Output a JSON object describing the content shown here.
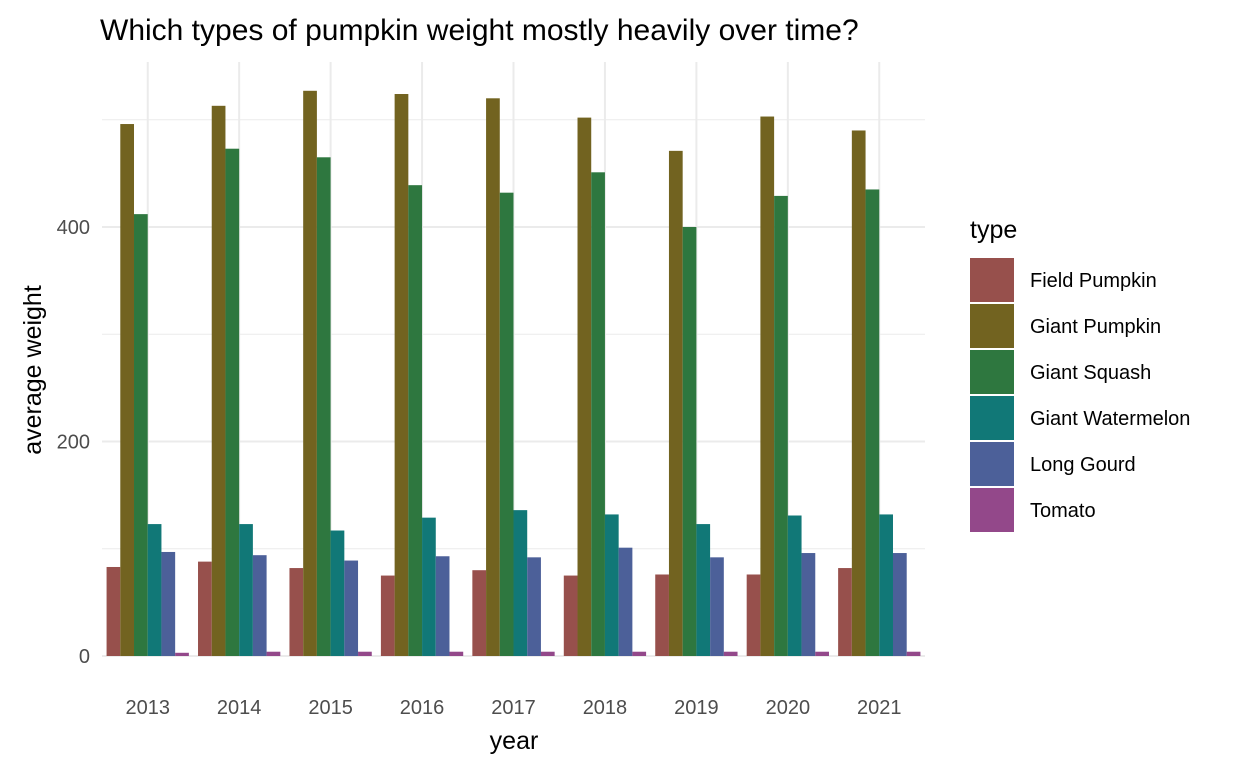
{
  "chart_data": {
    "type": "bar",
    "title": "Which types of pumpkin weight mostly heavily over time?",
    "xlabel": "year",
    "ylabel": "average weight",
    "categories": [
      "2013",
      "2014",
      "2015",
      "2016",
      "2017",
      "2018",
      "2019",
      "2020",
      "2021"
    ],
    "ylim": [
      0,
      540
    ],
    "yticks": [
      0,
      200,
      400
    ],
    "grid": true,
    "legend_title": "type",
    "legend_position": "right",
    "series": [
      {
        "name": "Field Pumpkin",
        "color": "#97504C",
        "values": [
          83,
          88,
          82,
          75,
          80,
          75,
          76,
          76,
          82
        ]
      },
      {
        "name": "Giant Pumpkin",
        "color": "#726320",
        "values": [
          496,
          513,
          527,
          524,
          520,
          502,
          471,
          503,
          490
        ]
      },
      {
        "name": "Giant Squash",
        "color": "#2E773F",
        "values": [
          412,
          473,
          465,
          439,
          432,
          451,
          400,
          429,
          435
        ]
      },
      {
        "name": "Giant Watermelon",
        "color": "#117877",
        "values": [
          123,
          123,
          117,
          129,
          136,
          132,
          123,
          131,
          132
        ]
      },
      {
        "name": "Long Gourd",
        "color": "#4C6099",
        "values": [
          97,
          94,
          89,
          93,
          92,
          101,
          92,
          96,
          96
        ]
      },
      {
        "name": "Tomato",
        "color": "#93488A",
        "values": [
          3,
          4,
          4,
          4,
          4,
          4,
          4,
          4,
          4
        ]
      }
    ]
  }
}
